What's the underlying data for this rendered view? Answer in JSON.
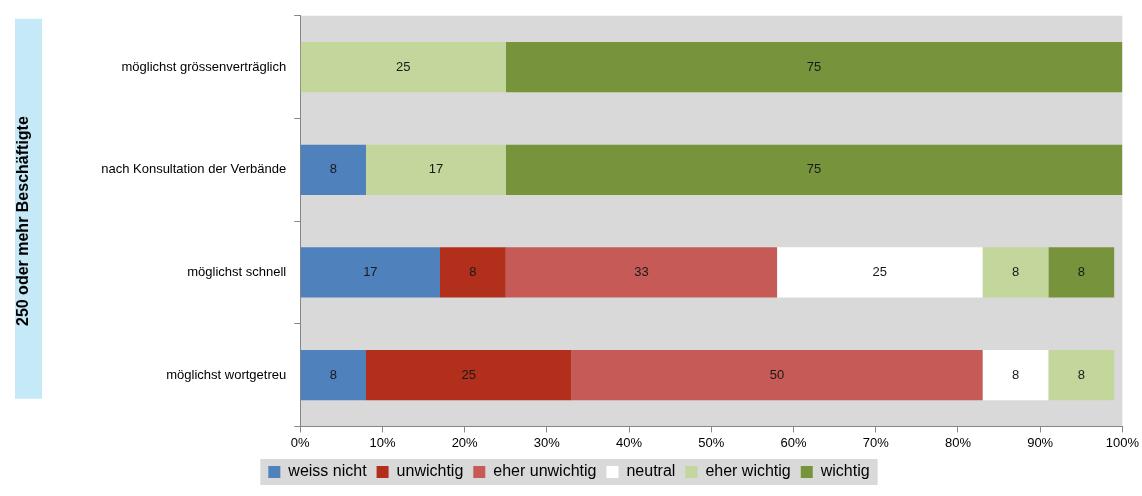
{
  "chart_data": {
    "type": "bar",
    "orientation": "horizontal",
    "stacked": true,
    "ylabel": "250 oder mehr Beschäftigte",
    "categories": [
      "möglichst grössenverträglich",
      "nach Konsultation der Verbände",
      "möglichst schnell",
      "möglichst wortgetreu"
    ],
    "series": [
      {
        "name": "weiss nicht",
        "color": "#4f81bd",
        "values": [
          null,
          8,
          17,
          8
        ]
      },
      {
        "name": "unwichtig",
        "color": "#b22f1c",
        "values": [
          null,
          null,
          8,
          25
        ]
      },
      {
        "name": "eher unwichtig",
        "color": "#c55a56",
        "values": [
          null,
          null,
          33,
          50
        ]
      },
      {
        "name": "neutral",
        "color": "#ffffff",
        "values": [
          null,
          null,
          25,
          8
        ]
      },
      {
        "name": "eher wichtig",
        "color": "#c3d69b",
        "values": [
          25,
          17,
          8,
          8
        ]
      },
      {
        "name": "wichtig",
        "color": "#77933c",
        "values": [
          75,
          75,
          8,
          null
        ]
      }
    ],
    "xlim": [
      0,
      100
    ],
    "xticks": [
      {
        "value": 0,
        "label": "0%"
      },
      {
        "value": 10,
        "label": "10%"
      },
      {
        "value": 20,
        "label": "20%"
      },
      {
        "value": 30,
        "label": "30%"
      },
      {
        "value": 40,
        "label": "40%"
      },
      {
        "value": 50,
        "label": "50%"
      },
      {
        "value": 60,
        "label": "60%"
      },
      {
        "value": 70,
        "label": "70%"
      },
      {
        "value": 80,
        "label": "80%"
      },
      {
        "value": 90,
        "label": "90%"
      },
      {
        "value": 100,
        "label": "100%"
      }
    ],
    "data_labels": true,
    "legend": "bottom",
    "grid": false
  }
}
